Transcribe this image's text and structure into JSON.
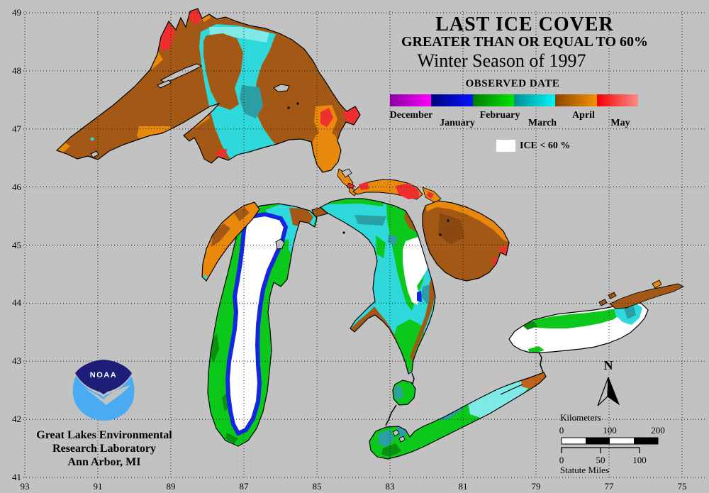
{
  "title": {
    "line1": "LAST ICE COVER",
    "line2": "GREATER THAN OR EQUAL TO 60%",
    "line3": "Winter Season of 1997"
  },
  "legend": {
    "heading": "OBSERVED DATE",
    "ice_label": "ICE < 60 %",
    "months": [
      {
        "label": "December",
        "from": "#8A00A0",
        "to": "#FD00FD",
        "row": "top"
      },
      {
        "label": "January",
        "from": "#00007E",
        "to": "#0713FF",
        "row": "bottom"
      },
      {
        "label": "February",
        "from": "#007C00",
        "to": "#00E400",
        "row": "top"
      },
      {
        "label": "March",
        "from": "#008E92",
        "to": "#00F6F6",
        "row": "bottom"
      },
      {
        "label": "April",
        "from": "#8A4500",
        "to": "#F49200",
        "row": "top"
      },
      {
        "label": "May",
        "from": "#F20000",
        "to": "#FC8C8C",
        "row": "bottom"
      }
    ]
  },
  "axes": {
    "lat_labels": [
      "49",
      "48",
      "47",
      "46",
      "45",
      "44",
      "43",
      "42",
      "41"
    ],
    "lon_labels": [
      "93",
      "91",
      "89",
      "87",
      "85",
      "83",
      "81",
      "79",
      "77",
      "75"
    ]
  },
  "credit": {
    "line1": "Great Lakes Environmental",
    "line2": "Research Laboratory",
    "line3": "Ann Arbor, MI"
  },
  "noaa_logo_text": "NOAA",
  "compass": {
    "north_label": "N"
  },
  "scale_km": {
    "label": "Kilometers",
    "ticks": [
      "0",
      "100",
      "200"
    ]
  },
  "scale_mi": {
    "label": "Statute Miles",
    "ticks": [
      "0",
      "50",
      "100"
    ]
  },
  "map_colors": {
    "land": "#C2C2C2",
    "outline": "#000000",
    "january": "#1426E0",
    "february": "#0BC81B",
    "february_dark": "#0A8F12",
    "march": "#2FD9DB",
    "march_light": "#7FE9E6",
    "march_teal": "#2B9FA6",
    "april": "#A35915",
    "april_dark": "#8A4910",
    "april_orange": "#E8890E",
    "april_burnt": "#C2611B",
    "may": "#EF2F2F",
    "ice": "#FFFFFF",
    "noaa_navy": "#1E1E78",
    "noaa_blue": "#4AAAF2"
  }
}
